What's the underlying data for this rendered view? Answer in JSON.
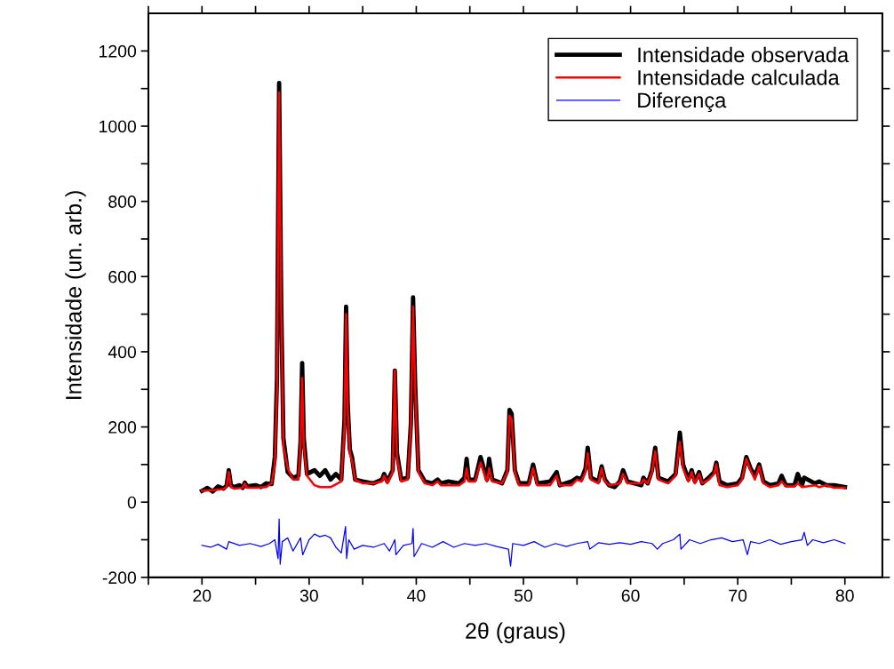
{
  "chart_data": {
    "type": "line",
    "xlabel": "2θ (graus)",
    "ylabel": "Intensidade (un. arb.)",
    "xlim": [
      15,
      83.5
    ],
    "ylim": [
      -200,
      1300
    ],
    "xticks": [
      {
        "value": 15,
        "label": null
      },
      20,
      {
        "value": 25,
        "label": null
      },
      30,
      {
        "value": 35,
        "label": null
      },
      40,
      {
        "value": 45,
        "label": null
      },
      50,
      {
        "value": 55,
        "label": null
      },
      60,
      {
        "value": 65,
        "label": null
      },
      70,
      {
        "value": 75,
        "label": null
      },
      80
    ],
    "yticks": [
      -200,
      {
        "value": -100,
        "label": null
      },
      0,
      {
        "value": 100,
        "label": null
      },
      200,
      {
        "value": 300,
        "label": null
      },
      400,
      {
        "value": 500,
        "label": null
      },
      600,
      {
        "value": 700,
        "label": null
      },
      800,
      {
        "value": 900,
        "label": null
      },
      1000,
      {
        "value": 1100,
        "label": null
      },
      1200
    ],
    "legend": "top right",
    "grid": false,
    "marker": "none",
    "series": [
      {
        "name": "Intensidade observada",
        "color": "#000000",
        "x": [
          20,
          20.5,
          21,
          21.5,
          22,
          22.3,
          22.5,
          22.7,
          23,
          23.5,
          23.8,
          24,
          24.2,
          25,
          25.5,
          26,
          26.5,
          26.8,
          27.0,
          27.2,
          27.4,
          27.6,
          28,
          28.5,
          29.0,
          29.2,
          29.35,
          29.5,
          29.8,
          30.5,
          31,
          31.5,
          32,
          32.5,
          33,
          33.3,
          33.45,
          33.6,
          33.8,
          34,
          34.3,
          35,
          36,
          36.8,
          37.0,
          37.3,
          37.8,
          38.0,
          38.2,
          38.6,
          39.2,
          39.5,
          39.7,
          39.9,
          40.2,
          40.8,
          41.5,
          42,
          42.3,
          43,
          44,
          44.5,
          44.7,
          44.9,
          45.5,
          46.0,
          46.3,
          46.6,
          46.8,
          47.1,
          48,
          48.5,
          48.7,
          48.9,
          49.2,
          49.6,
          50.5,
          50.9,
          51.3,
          52.5,
          53.1,
          53.4,
          54.5,
          55.0,
          55.4,
          55.8,
          56.0,
          56.3,
          57.0,
          57.3,
          57.6,
          58,
          58.5,
          59,
          59.3,
          59.7,
          61,
          61.2,
          61.6,
          62.0,
          62.3,
          62.6,
          63.5,
          64.2,
          64.6,
          64.9,
          65.4,
          65.7,
          66.0,
          66.4,
          66.7,
          67.3,
          67.8,
          68.0,
          68.3,
          69,
          70,
          70.4,
          70.8,
          71.2,
          71.6,
          72,
          72.4,
          73,
          73.8,
          74.1,
          74.5,
          75.3,
          75.6,
          76,
          76.2,
          77.2,
          77.6,
          78.3,
          79,
          80
        ],
        "values": [
          30,
          38,
          28,
          42,
          36,
          44,
          85,
          45,
          40,
          45,
          38,
          52,
          42,
          45,
          40,
          50,
          48,
          120,
          330,
          1115,
          520,
          170,
          80,
          65,
          70,
          160,
          370,
          170,
          75,
          85,
          70,
          85,
          60,
          75,
          60,
          220,
          520,
          260,
          140,
          120,
          60,
          55,
          50,
          60,
          75,
          55,
          85,
          350,
          130,
          60,
          65,
          210,
          545,
          310,
          85,
          55,
          50,
          60,
          50,
          55,
          50,
          65,
          115,
          60,
          60,
          120,
          90,
          60,
          115,
          60,
          50,
          85,
          245,
          235,
          85,
          50,
          50,
          100,
          50,
          55,
          80,
          45,
          55,
          65,
          60,
          90,
          145,
          65,
          55,
          95,
          60,
          45,
          40,
          55,
          85,
          55,
          45,
          65,
          50,
          85,
          145,
          65,
          55,
          75,
          185,
          100,
          60,
          85,
          55,
          80,
          50,
          65,
          80,
          105,
          55,
          45,
          50,
          65,
          120,
          90,
          70,
          100,
          55,
          45,
          50,
          70,
          45,
          45,
          75,
          45,
          65,
          50,
          55,
          45,
          45,
          40
        ]
      },
      {
        "name": "Intensidade calculada",
        "color": "#ff0000",
        "x": [
          20,
          21,
          22,
          22.3,
          22.5,
          22.7,
          23,
          23.8,
          24,
          24.2,
          25,
          26,
          26.5,
          26.8,
          27.0,
          27.2,
          27.4,
          27.6,
          28,
          28.5,
          29.0,
          29.2,
          29.35,
          29.5,
          29.8,
          30.5,
          31,
          32,
          33,
          33.3,
          33.45,
          33.6,
          33.8,
          34,
          34.3,
          35,
          36,
          36.8,
          37.0,
          37.3,
          37.8,
          38.0,
          38.2,
          38.6,
          39.2,
          39.5,
          39.7,
          39.9,
          40.2,
          40.8,
          41.5,
          42,
          42.3,
          43,
          44,
          44.5,
          44.7,
          44.9,
          45.5,
          46.0,
          46.3,
          46.6,
          46.8,
          47.1,
          48,
          48.5,
          48.7,
          48.9,
          49.2,
          49.6,
          50.5,
          50.9,
          51.3,
          52.5,
          53.1,
          53.4,
          54.5,
          55.0,
          55.4,
          55.8,
          56.0,
          56.3,
          57.0,
          57.3,
          57.6,
          58,
          59,
          59.3,
          59.7,
          61,
          61.2,
          61.6,
          62.0,
          62.3,
          62.6,
          63.5,
          64.2,
          64.6,
          64.9,
          65.4,
          65.7,
          66.0,
          66.4,
          66.7,
          67.3,
          67.8,
          68.0,
          68.3,
          69,
          70,
          70.4,
          70.8,
          71.2,
          71.6,
          72,
          72.4,
          73,
          73.8,
          74.1,
          74.5,
          75.3,
          75.6,
          76,
          77.2,
          77.6,
          78.3,
          79,
          80
        ],
        "values": [
          30,
          32,
          35,
          40,
          80,
          40,
          36,
          38,
          50,
          38,
          38,
          40,
          50,
          100,
          300,
          1090,
          500,
          150,
          90,
          60,
          60,
          150,
          330,
          150,
          70,
          45,
          40,
          40,
          55,
          200,
          500,
          250,
          130,
          110,
          60,
          50,
          50,
          55,
          70,
          50,
          80,
          350,
          120,
          55,
          60,
          200,
          520,
          300,
          80,
          50,
          45,
          55,
          45,
          45,
          45,
          55,
          90,
          55,
          55,
          105,
          80,
          55,
          90,
          55,
          50,
          80,
          230,
          220,
          80,
          45,
          45,
          90,
          45,
          45,
          70,
          45,
          45,
          60,
          55,
          80,
          130,
          60,
          50,
          90,
          55,
          45,
          50,
          75,
          50,
          50,
          60,
          50,
          80,
          135,
          60,
          50,
          70,
          160,
          90,
          55,
          80,
          50,
          75,
          50,
          60,
          75,
          100,
          45,
          40,
          45,
          60,
          115,
          85,
          60,
          95,
          50,
          40,
          45,
          55,
          42,
          42,
          50,
          40,
          45,
          40,
          45,
          38,
          38
        ]
      },
      {
        "name": "Diferença",
        "color": "#0000ff",
        "x": [
          20,
          20.8,
          21.5,
          22.3,
          22.5,
          23.5,
          24.5,
          25.5,
          26.3,
          26.8,
          27.1,
          27.2,
          27.3,
          27.5,
          28.0,
          28.5,
          29.2,
          29.4,
          30,
          30.5,
          31,
          31.5,
          32,
          32.5,
          33.0,
          33.4,
          33.5,
          33.7,
          34.2,
          35,
          36,
          37,
          37.5,
          38.0,
          38.1,
          38.8,
          39.6,
          39.7,
          39.8,
          40.5,
          41.5,
          42.5,
          43.5,
          44.5,
          45.5,
          46.5,
          47.5,
          48.6,
          48.8,
          49.0,
          50,
          51,
          52,
          53,
          54,
          55,
          56,
          56.2,
          57,
          58,
          59,
          60,
          61,
          62,
          62.5,
          63,
          64,
          64.6,
          64.7,
          65.5,
          66.5,
          67.5,
          68.5,
          69.5,
          70.5,
          70.9,
          71.2,
          72,
          73,
          74,
          75,
          76,
          76.2,
          76.5,
          77,
          78,
          79,
          80
        ],
        "values": [
          -115,
          -120,
          -112,
          -125,
          -105,
          -115,
          -110,
          -118,
          -110,
          -100,
          -150,
          -45,
          -165,
          -105,
          -95,
          -130,
          -95,
          -140,
          -100,
          -85,
          -92,
          -88,
          -95,
          -120,
          -135,
          -65,
          -150,
          -100,
          -125,
          -115,
          -120,
          -110,
          -130,
          -100,
          -140,
          -115,
          -110,
          -70,
          -145,
          -110,
          -120,
          -105,
          -120,
          -110,
          -115,
          -110,
          -118,
          -125,
          -170,
          -110,
          -115,
          -105,
          -120,
          -110,
          -118,
          -110,
          -105,
          -125,
          -108,
          -112,
          -108,
          -112,
          -105,
          -110,
          -125,
          -110,
          -100,
          -85,
          -125,
          -100,
          -110,
          -100,
          -95,
          -105,
          -100,
          -140,
          -105,
          -110,
          -100,
          -112,
          -105,
          -100,
          -80,
          -115,
          -100,
          -108,
          -100,
          -110
        ]
      }
    ]
  }
}
